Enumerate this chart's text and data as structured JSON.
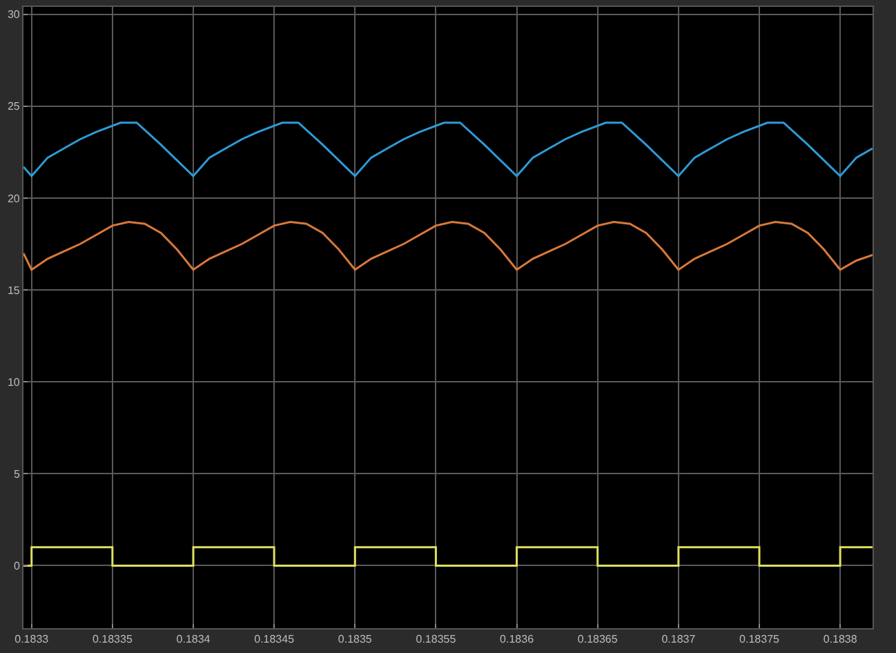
{
  "chart_data": {
    "type": "line",
    "xlim": [
      0.183295,
      0.18382
    ],
    "ylim": [
      -3.4,
      30.4
    ],
    "xticks": [
      0.1833,
      0.18335,
      0.1834,
      0.18345,
      0.1835,
      0.18355,
      0.1836,
      0.18365,
      0.1837,
      0.18375,
      0.1838
    ],
    "yticks": [
      0,
      5,
      10,
      15,
      20,
      25,
      30
    ],
    "grid": true,
    "marker": "none",
    "line_style": "solid",
    "series": [
      {
        "color": "#2e9bd6",
        "x": [
          0.183295,
          0.1833,
          0.18331,
          0.18332,
          0.18333,
          0.18334,
          0.183355,
          0.183365,
          0.18338,
          0.1834,
          0.18341,
          0.18342,
          0.18343,
          0.18344,
          0.183455,
          0.183465,
          0.18348,
          0.1835,
          0.18351,
          0.18352,
          0.18353,
          0.18354,
          0.183555,
          0.183565,
          0.18358,
          0.1836,
          0.18361,
          0.18362,
          0.18363,
          0.18364,
          0.183655,
          0.183665,
          0.18368,
          0.1837,
          0.18371,
          0.18372,
          0.18373,
          0.18374,
          0.183755,
          0.183765,
          0.18378,
          0.1838,
          0.18381,
          0.18382
        ],
        "values": [
          21.7,
          21.2,
          22.2,
          22.7,
          23.2,
          23.6,
          24.1,
          24.1,
          22.9,
          21.2,
          22.2,
          22.7,
          23.2,
          23.6,
          24.1,
          24.1,
          22.9,
          21.2,
          22.2,
          22.7,
          23.2,
          23.6,
          24.1,
          24.1,
          22.9,
          21.2,
          22.2,
          22.7,
          23.2,
          23.6,
          24.1,
          24.1,
          22.9,
          21.2,
          22.2,
          22.7,
          23.2,
          23.6,
          24.1,
          24.1,
          22.9,
          21.2,
          22.2,
          22.7
        ]
      },
      {
        "color": "#d9793a",
        "x": [
          0.183295,
          0.1833,
          0.18331,
          0.18332,
          0.18333,
          0.18334,
          0.18335,
          0.18336,
          0.18337,
          0.18338,
          0.18339,
          0.1834,
          0.18341,
          0.18342,
          0.18343,
          0.18344,
          0.18345,
          0.18346,
          0.18347,
          0.18348,
          0.18349,
          0.1835,
          0.18351,
          0.18352,
          0.18353,
          0.18354,
          0.18355,
          0.18356,
          0.18357,
          0.18358,
          0.18359,
          0.1836,
          0.18361,
          0.18362,
          0.18363,
          0.18364,
          0.18365,
          0.18366,
          0.18367,
          0.18368,
          0.18369,
          0.1837,
          0.18371,
          0.18372,
          0.18373,
          0.18374,
          0.18375,
          0.18376,
          0.18377,
          0.18378,
          0.18379,
          0.1838,
          0.18381,
          0.18382
        ],
        "values": [
          17.0,
          16.1,
          16.7,
          17.1,
          17.5,
          18.0,
          18.5,
          18.7,
          18.6,
          18.1,
          17.2,
          16.1,
          16.7,
          17.1,
          17.5,
          18.0,
          18.5,
          18.7,
          18.6,
          18.1,
          17.2,
          16.1,
          16.7,
          17.1,
          17.5,
          18.0,
          18.5,
          18.7,
          18.6,
          18.1,
          17.2,
          16.1,
          16.7,
          17.1,
          17.5,
          18.0,
          18.5,
          18.7,
          18.6,
          18.1,
          17.2,
          16.1,
          16.7,
          17.1,
          17.5,
          18.0,
          18.5,
          18.7,
          18.6,
          18.1,
          17.2,
          16.1,
          16.6,
          16.9
        ]
      },
      {
        "type": "step",
        "color": "#e0e060",
        "x": [
          0.183295,
          0.1833,
          0.18335,
          0.1834,
          0.18345,
          0.1835,
          0.18355,
          0.1836,
          0.18365,
          0.1837,
          0.18375,
          0.1838,
          0.18382
        ],
        "values": [
          0,
          1,
          0,
          1,
          0,
          1,
          0,
          1,
          0,
          1,
          0,
          1,
          1
        ]
      }
    ]
  }
}
